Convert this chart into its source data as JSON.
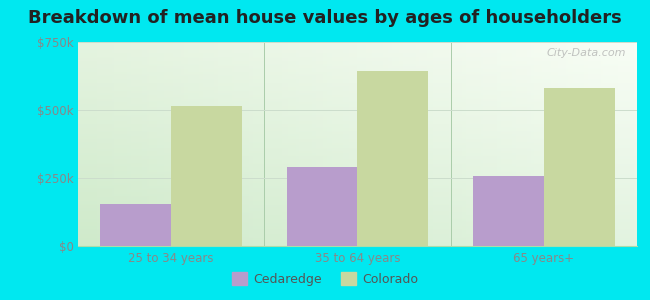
{
  "title": "Breakdown of mean house values by ages of householders",
  "categories": [
    "25 to 34 years",
    "35 to 64 years",
    "65 years+"
  ],
  "cedaredge_values": [
    155000,
    290000,
    258000
  ],
  "colorado_values": [
    515000,
    645000,
    580000
  ],
  "cedaredge_color": "#b89dcc",
  "colorado_color": "#c8d8a0",
  "background_color": "#00e8f0",
  "ylim": [
    0,
    750000
  ],
  "yticks": [
    0,
    250000,
    500000,
    750000
  ],
  "ytick_labels": [
    "$0",
    "$250k",
    "$500k",
    "$750k"
  ],
  "legend_labels": [
    "Cedaredge",
    "Colorado"
  ],
  "bar_width": 0.38,
  "title_fontsize": 13,
  "tick_fontsize": 8.5,
  "legend_fontsize": 9,
  "watermark": "City-Data.com"
}
